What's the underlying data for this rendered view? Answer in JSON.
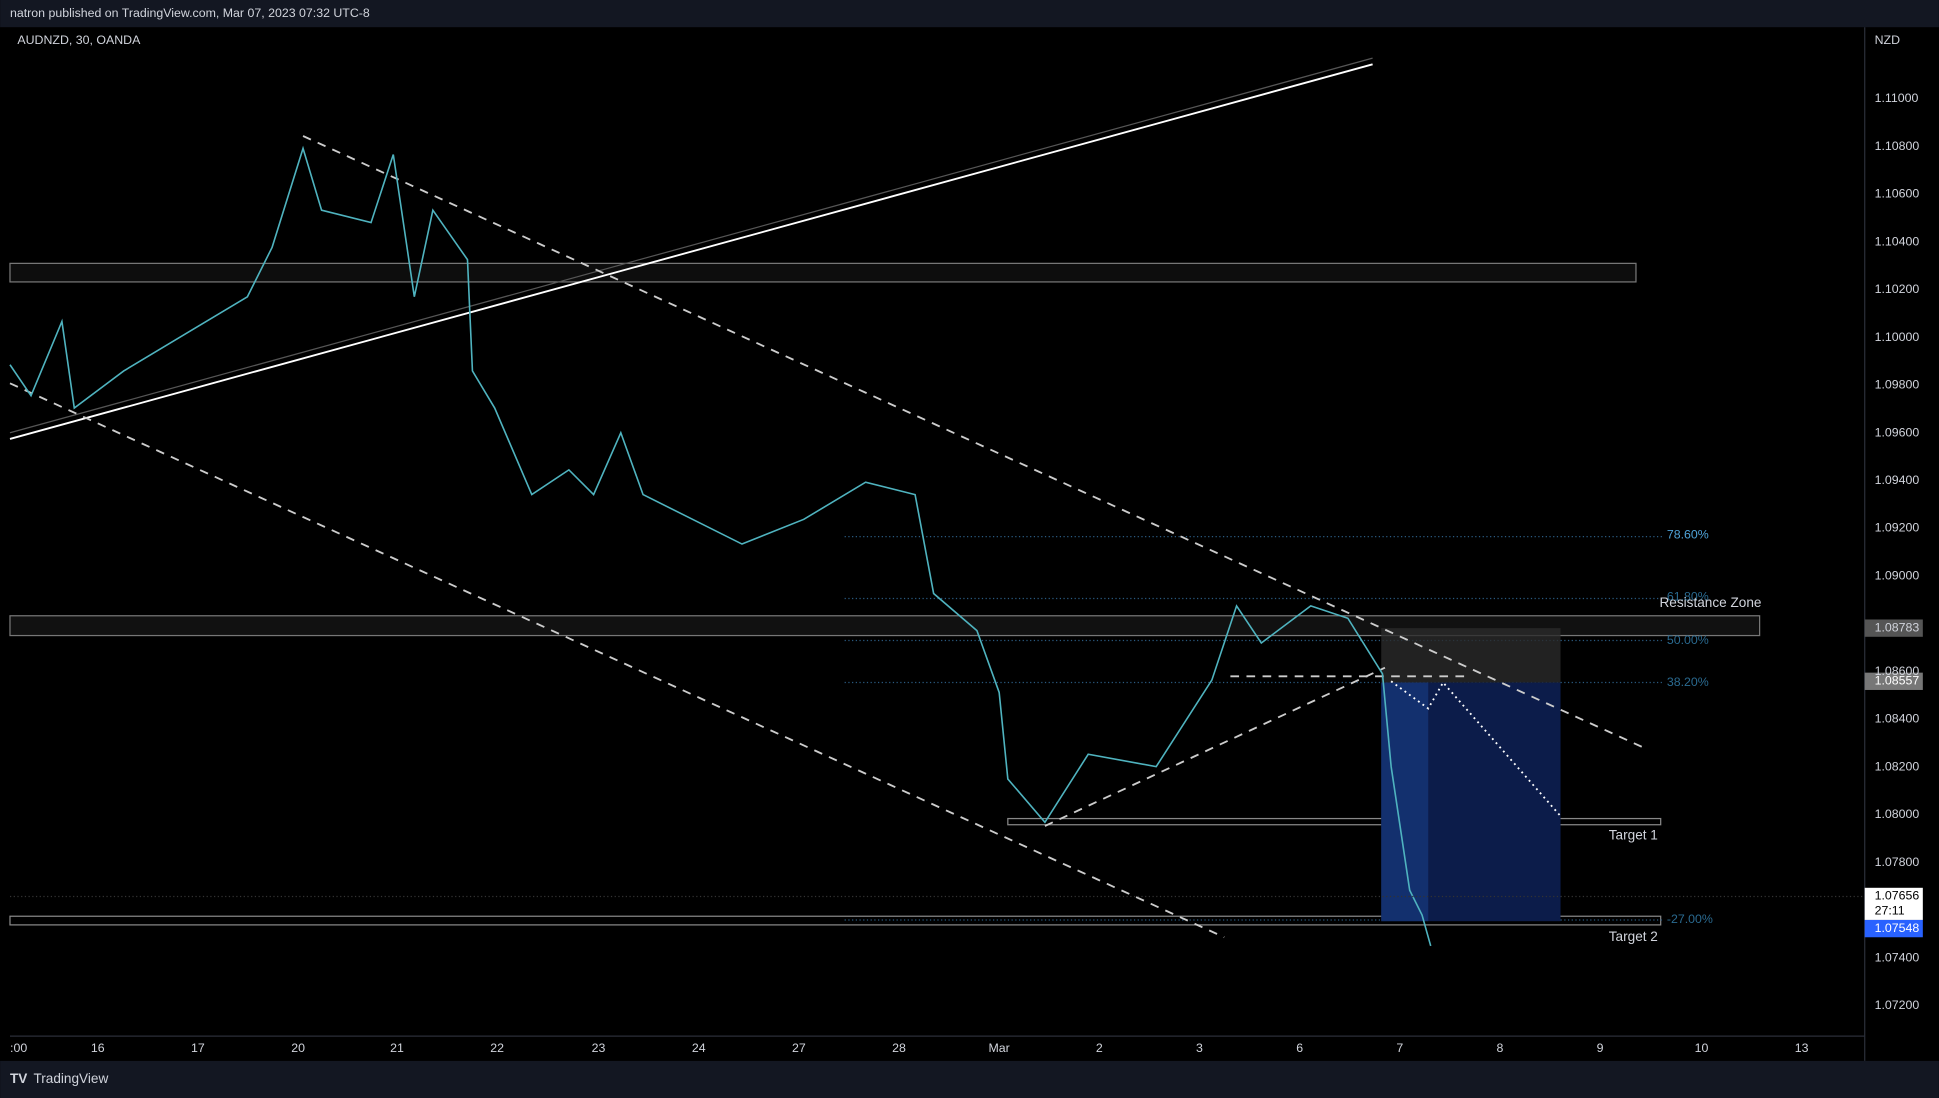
{
  "header": {
    "title": "natron published on TradingView.com, Mar 07, 2023 07:32 UTC-8"
  },
  "chart": {
    "symbol": "AUDNZD, 30, OANDA",
    "currency": "NZD",
    "price_axis": [
      "1.11000",
      "1.10800",
      "1.10600",
      "1.10400",
      "1.10200",
      "1.10000",
      "1.09800",
      "1.09600",
      "1.09400",
      "1.09200",
      "1.09000",
      "1.08600",
      "1.08400",
      "1.08200",
      "1.08000",
      "1.07800",
      "1.07400",
      "1.07200"
    ],
    "time_axis": [
      ":00",
      "16",
      "17",
      "20",
      "21",
      "22",
      "23",
      "24",
      "27",
      "28",
      "Mar",
      "2",
      "3",
      "6",
      "7",
      "8",
      "9",
      "10",
      "13"
    ],
    "price_tags": {
      "resistance": "1.08783",
      "entry": "1.08557",
      "last": "1.07656",
      "countdown": "27:11",
      "current": "1.07548"
    },
    "fib_levels": [
      "78.60%",
      "61.80%",
      "50.00%",
      "38.20%",
      "-27.00%"
    ],
    "annotations": {
      "zone": "Resistance Zone",
      "target1": "Target 1",
      "target2": "Target 2"
    }
  },
  "footer": {
    "brand": "TradingView"
  }
}
